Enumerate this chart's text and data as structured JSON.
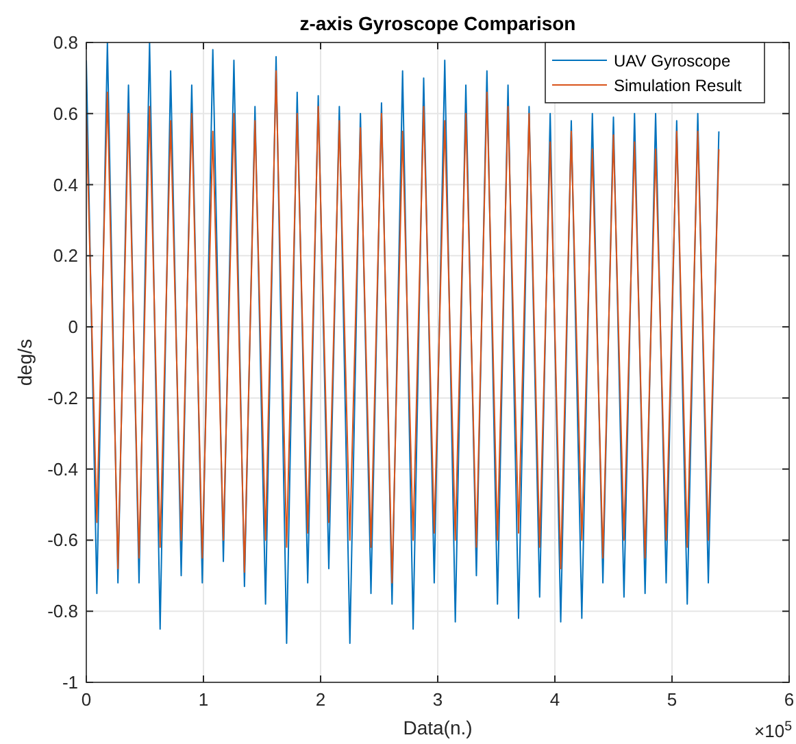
{
  "chart_data": {
    "type": "line",
    "title": "z-axis Gyroscope Comparison",
    "xlabel": "Data(n.)",
    "ylabel": "deg/s",
    "x": [
      0,
      0.09,
      0.18,
      0.27,
      0.36,
      0.45,
      0.54,
      0.63,
      0.72,
      0.81,
      0.9,
      0.99,
      1.08,
      1.17,
      1.26,
      1.35,
      1.44,
      1.53,
      1.62,
      1.71,
      1.8,
      1.89,
      1.98,
      2.07,
      2.16,
      2.25,
      2.34,
      2.43,
      2.52,
      2.61,
      2.7,
      2.79,
      2.88,
      2.97,
      3.06,
      3.15,
      3.24,
      3.33,
      3.42,
      3.51,
      3.6,
      3.69,
      3.78,
      3.87,
      3.96,
      4.05,
      4.14,
      4.23,
      4.32,
      4.41,
      4.5,
      4.59,
      4.68,
      4.77,
      4.86,
      4.95,
      5.04,
      5.13,
      5.22,
      5.31,
      5.4
    ],
    "series": [
      {
        "name": "UAV Gyroscope",
        "color": "#0072bd",
        "values": [
          0.75,
          -0.75,
          0.8,
          -0.72,
          0.68,
          -0.72,
          0.8,
          -0.85,
          0.72,
          -0.7,
          0.68,
          -0.72,
          0.78,
          -0.66,
          0.75,
          -0.73,
          0.62,
          -0.78,
          0.76,
          -0.89,
          0.66,
          -0.72,
          0.65,
          -0.68,
          0.62,
          -0.89,
          0.6,
          -0.75,
          0.63,
          -0.78,
          0.72,
          -0.85,
          0.7,
          -0.72,
          0.75,
          -0.83,
          0.68,
          -0.7,
          0.72,
          -0.78,
          0.68,
          -0.82,
          0.62,
          -0.76,
          0.6,
          -0.83,
          0.58,
          -0.82,
          0.6,
          -0.72,
          0.59,
          -0.76,
          0.6,
          -0.75,
          0.6,
          -0.72,
          0.58,
          -0.78,
          0.6,
          -0.72,
          0.55
        ]
      },
      {
        "name": "Simulation Result",
        "color": "#d95319",
        "values": [
          0.6,
          -0.55,
          0.66,
          -0.68,
          0.6,
          -0.65,
          0.62,
          -0.62,
          0.58,
          -0.6,
          0.6,
          -0.65,
          0.55,
          -0.6,
          0.6,
          -0.69,
          0.58,
          -0.6,
          0.72,
          -0.62,
          0.6,
          -0.58,
          0.62,
          -0.55,
          0.58,
          -0.6,
          0.56,
          -0.62,
          0.6,
          -0.72,
          0.55,
          -0.6,
          0.62,
          -0.58,
          0.58,
          -0.6,
          0.6,
          -0.62,
          0.66,
          -0.6,
          0.62,
          -0.58,
          0.6,
          -0.62,
          0.52,
          -0.68,
          0.55,
          -0.6,
          0.5,
          -0.65,
          0.54,
          -0.6,
          0.52,
          -0.65,
          0.5,
          -0.6,
          0.55,
          -0.62,
          0.55,
          -0.6,
          0.5
        ]
      }
    ],
    "xlim": [
      0,
      6
    ],
    "xticks": [
      0,
      1,
      2,
      3,
      4,
      5,
      6
    ],
    "ylim": [
      -1,
      0.8
    ],
    "yticks": [
      -1,
      -0.8,
      -0.6,
      -0.4,
      -0.2,
      0,
      0.2,
      0.4,
      0.6,
      0.8
    ],
    "grid": true,
    "legend": "top right",
    "marker": "none",
    "line_style": "solid",
    "annotations": [
      "×10$^{5}$"
    ]
  }
}
